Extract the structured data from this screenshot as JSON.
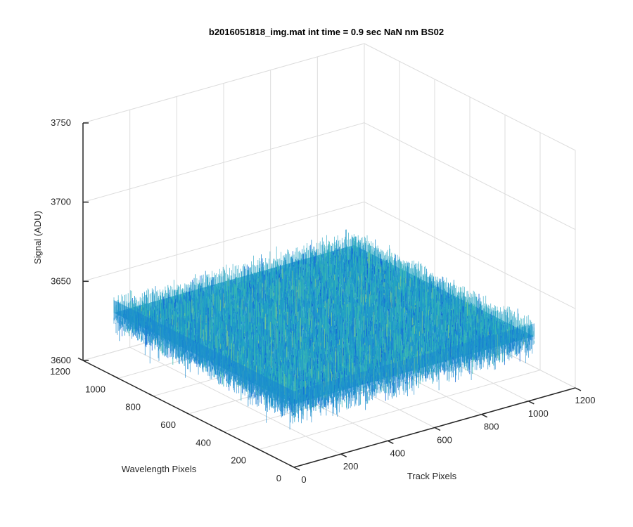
{
  "figure": {
    "background": "#ffffff",
    "grid": true,
    "view": "3-D mesh plot, default MATLAB view"
  },
  "chart_data": {
    "type": "surface",
    "title": "b2016051818_img.mat int time = 0.9 sec  NaN nm BS02",
    "xlabel": "Track Pixels",
    "ylabel": "Wavelength Pixels",
    "zlabel": "Signal (ADU)",
    "xlim": [
      0,
      1200
    ],
    "ylim": [
      0,
      1200
    ],
    "zlim": [
      3600,
      3750
    ],
    "x_ticks": [
      "0",
      "200",
      "400",
      "600",
      "800",
      "1000",
      "1200"
    ],
    "y_ticks": [
      "0",
      "200",
      "400",
      "600",
      "800",
      "1000",
      "1200"
    ],
    "z_ticks": [
      "3600",
      "3650",
      "3700",
      "3750"
    ],
    "surface_extent": {
      "x": [
        0,
        1024
      ],
      "y": [
        0,
        1024
      ]
    },
    "signal_mean": 3640,
    "signal_range_typical": [
      3615,
      3665
    ],
    "colormap": [
      "#0a5fd6",
      "#1a8ad0",
      "#21a3c2",
      "#3ab8b0",
      "#7cc98c"
    ],
    "description": "dense noisy signal surface centered near 3640 ADU"
  }
}
